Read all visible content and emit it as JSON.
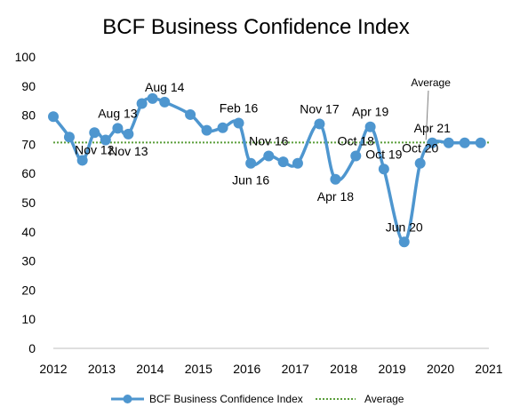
{
  "chart_data": {
    "type": "line",
    "title": "BCF Business Confidence Index",
    "xlabel": "",
    "ylabel": "",
    "ylim": [
      0,
      100
    ],
    "yticks": [
      0,
      10,
      20,
      30,
      40,
      50,
      60,
      70,
      80,
      90,
      100
    ],
    "xlim": [
      2012,
      2021
    ],
    "xticks": [
      2012,
      2013,
      2014,
      2015,
      2016,
      2017,
      2018,
      2019,
      2020,
      2021
    ],
    "grid": false,
    "legend_position": "bottom",
    "series": [
      {
        "name": "BCF Business Confidence Index",
        "color": "#4e96cf",
        "x": [
          2012.0,
          2012.33,
          2012.6,
          2012.85,
          2013.08,
          2013.33,
          2013.55,
          2013.83,
          2014.05,
          2014.3,
          2014.83,
          2015.17,
          2015.5,
          2015.83,
          2016.08,
          2016.45,
          2016.75,
          2017.05,
          2017.5,
          2017.83,
          2018.25,
          2018.55,
          2018.83,
          2019.25,
          2019.58,
          2019.83,
          2020.17,
          2020.5,
          2020.83
        ],
        "y": [
          79.5,
          72.5,
          64.5,
          74,
          71.5,
          75.5,
          73.5,
          84,
          85.7,
          84.5,
          80.2,
          74.8,
          75.7,
          77.3,
          63.5,
          66,
          64,
          63.5,
          77,
          58,
          66,
          76,
          61.5,
          36.5,
          63.5,
          70.5,
          70.5,
          70.5,
          70.5
        ]
      },
      {
        "name": "Average",
        "color": "#5a9e3a",
        "y_constant": 70.6
      }
    ],
    "annotations": [
      {
        "text": "Nov 12",
        "x": 2012.85,
        "y": 74,
        "position": "below"
      },
      {
        "text": "Aug 13",
        "x": 2013.33,
        "y": 75.5,
        "position": "above"
      },
      {
        "text": "Nov 13",
        "x": 2013.55,
        "y": 73.5,
        "position": "below"
      },
      {
        "text": "Aug 14",
        "x": 2014.3,
        "y": 84.5,
        "position": "above"
      },
      {
        "text": "Feb 16",
        "x": 2015.83,
        "y": 77.3,
        "position": "above"
      },
      {
        "text": "Jun 16",
        "x": 2016.08,
        "y": 63.5,
        "position": "below"
      },
      {
        "text": "Nov 16",
        "x": 2016.45,
        "y": 66,
        "position": "above"
      },
      {
        "text": "Nov 17",
        "x": 2017.5,
        "y": 77,
        "position": "above"
      },
      {
        "text": "Apr 18",
        "x": 2017.83,
        "y": 58,
        "position": "below"
      },
      {
        "text": "Oct 18",
        "x": 2018.25,
        "y": 66,
        "position": "above"
      },
      {
        "text": "Apr 19",
        "x": 2018.55,
        "y": 76,
        "position": "above"
      },
      {
        "text": "Oct 19",
        "x": 2018.83,
        "y": 61.5,
        "position": "above"
      },
      {
        "text": "Jun 20",
        "x": 2019.25,
        "y": 36.5,
        "position": "above"
      },
      {
        "text": "Oct 20",
        "x": 2019.58,
        "y": 63.5,
        "position": "above"
      },
      {
        "text": "Apr 21",
        "x": 2019.83,
        "y": 70.5,
        "position": "above"
      },
      {
        "text": "Average",
        "y": 70.6,
        "position": "above-line"
      }
    ]
  },
  "legend": {
    "series_label": "BCF Business Confidence Index",
    "average_label": "Average"
  }
}
